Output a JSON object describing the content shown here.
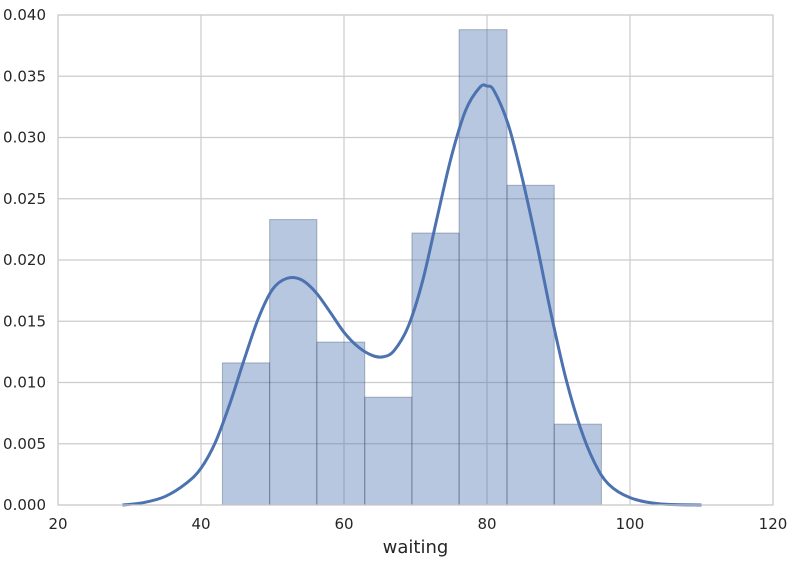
{
  "chart_data": {
    "type": "bar",
    "subtype": "histogram-with-kde",
    "xlabel": "waiting",
    "ylabel": "",
    "xlim": [
      20,
      120
    ],
    "ylim": [
      0,
      0.04
    ],
    "xticks": [
      "20",
      "40",
      "60",
      "80",
      "100",
      "120"
    ],
    "yticks": [
      "0.000",
      "0.005",
      "0.010",
      "0.015",
      "0.020",
      "0.025",
      "0.030",
      "0.035",
      "0.040"
    ],
    "grid": true,
    "bins": [
      {
        "x0": 43.0,
        "x1": 49.6,
        "value": 0.0116
      },
      {
        "x0": 49.6,
        "x1": 56.2,
        "value": 0.0233
      },
      {
        "x0": 56.2,
        "x1": 62.9,
        "value": 0.0133
      },
      {
        "x0": 62.9,
        "x1": 69.5,
        "value": 0.0088
      },
      {
        "x0": 69.5,
        "x1": 76.1,
        "value": 0.0222
      },
      {
        "x0": 76.1,
        "x1": 82.8,
        "value": 0.0388
      },
      {
        "x0": 82.8,
        "x1": 89.4,
        "value": 0.0261
      },
      {
        "x0": 89.4,
        "x1": 96.0,
        "value": 0.0066
      }
    ],
    "kde": {
      "x": [
        29,
        32,
        35,
        38,
        40,
        42,
        44,
        46,
        48,
        50,
        52,
        54,
        56,
        58,
        60,
        62,
        64,
        65.5,
        67,
        69,
        71,
        73,
        75,
        77,
        79,
        80,
        81,
        83,
        85,
        87,
        89,
        91,
        93,
        95,
        97,
        100,
        104,
        110
      ],
      "y": [
        0.0,
        0.0002,
        0.0007,
        0.0018,
        0.003,
        0.0051,
        0.0082,
        0.0118,
        0.0152,
        0.0176,
        0.0185,
        0.0184,
        0.0174,
        0.0158,
        0.0141,
        0.0129,
        0.0122,
        0.0121,
        0.0126,
        0.0146,
        0.0183,
        0.0234,
        0.0284,
        0.0322,
        0.0341,
        0.0342,
        0.0338,
        0.031,
        0.0265,
        0.0212,
        0.0155,
        0.0104,
        0.0064,
        0.0035,
        0.0017,
        0.0006,
        0.0001,
        0.0
      ]
    },
    "colors": {
      "bar_fill": "#4c72b0",
      "bar_fill_opacity": 0.4,
      "bar_edge": "#2a3b5c",
      "kde_line": "#4c72b0",
      "grid": "#cccccc",
      "axes_edge": "#cccccc"
    }
  }
}
